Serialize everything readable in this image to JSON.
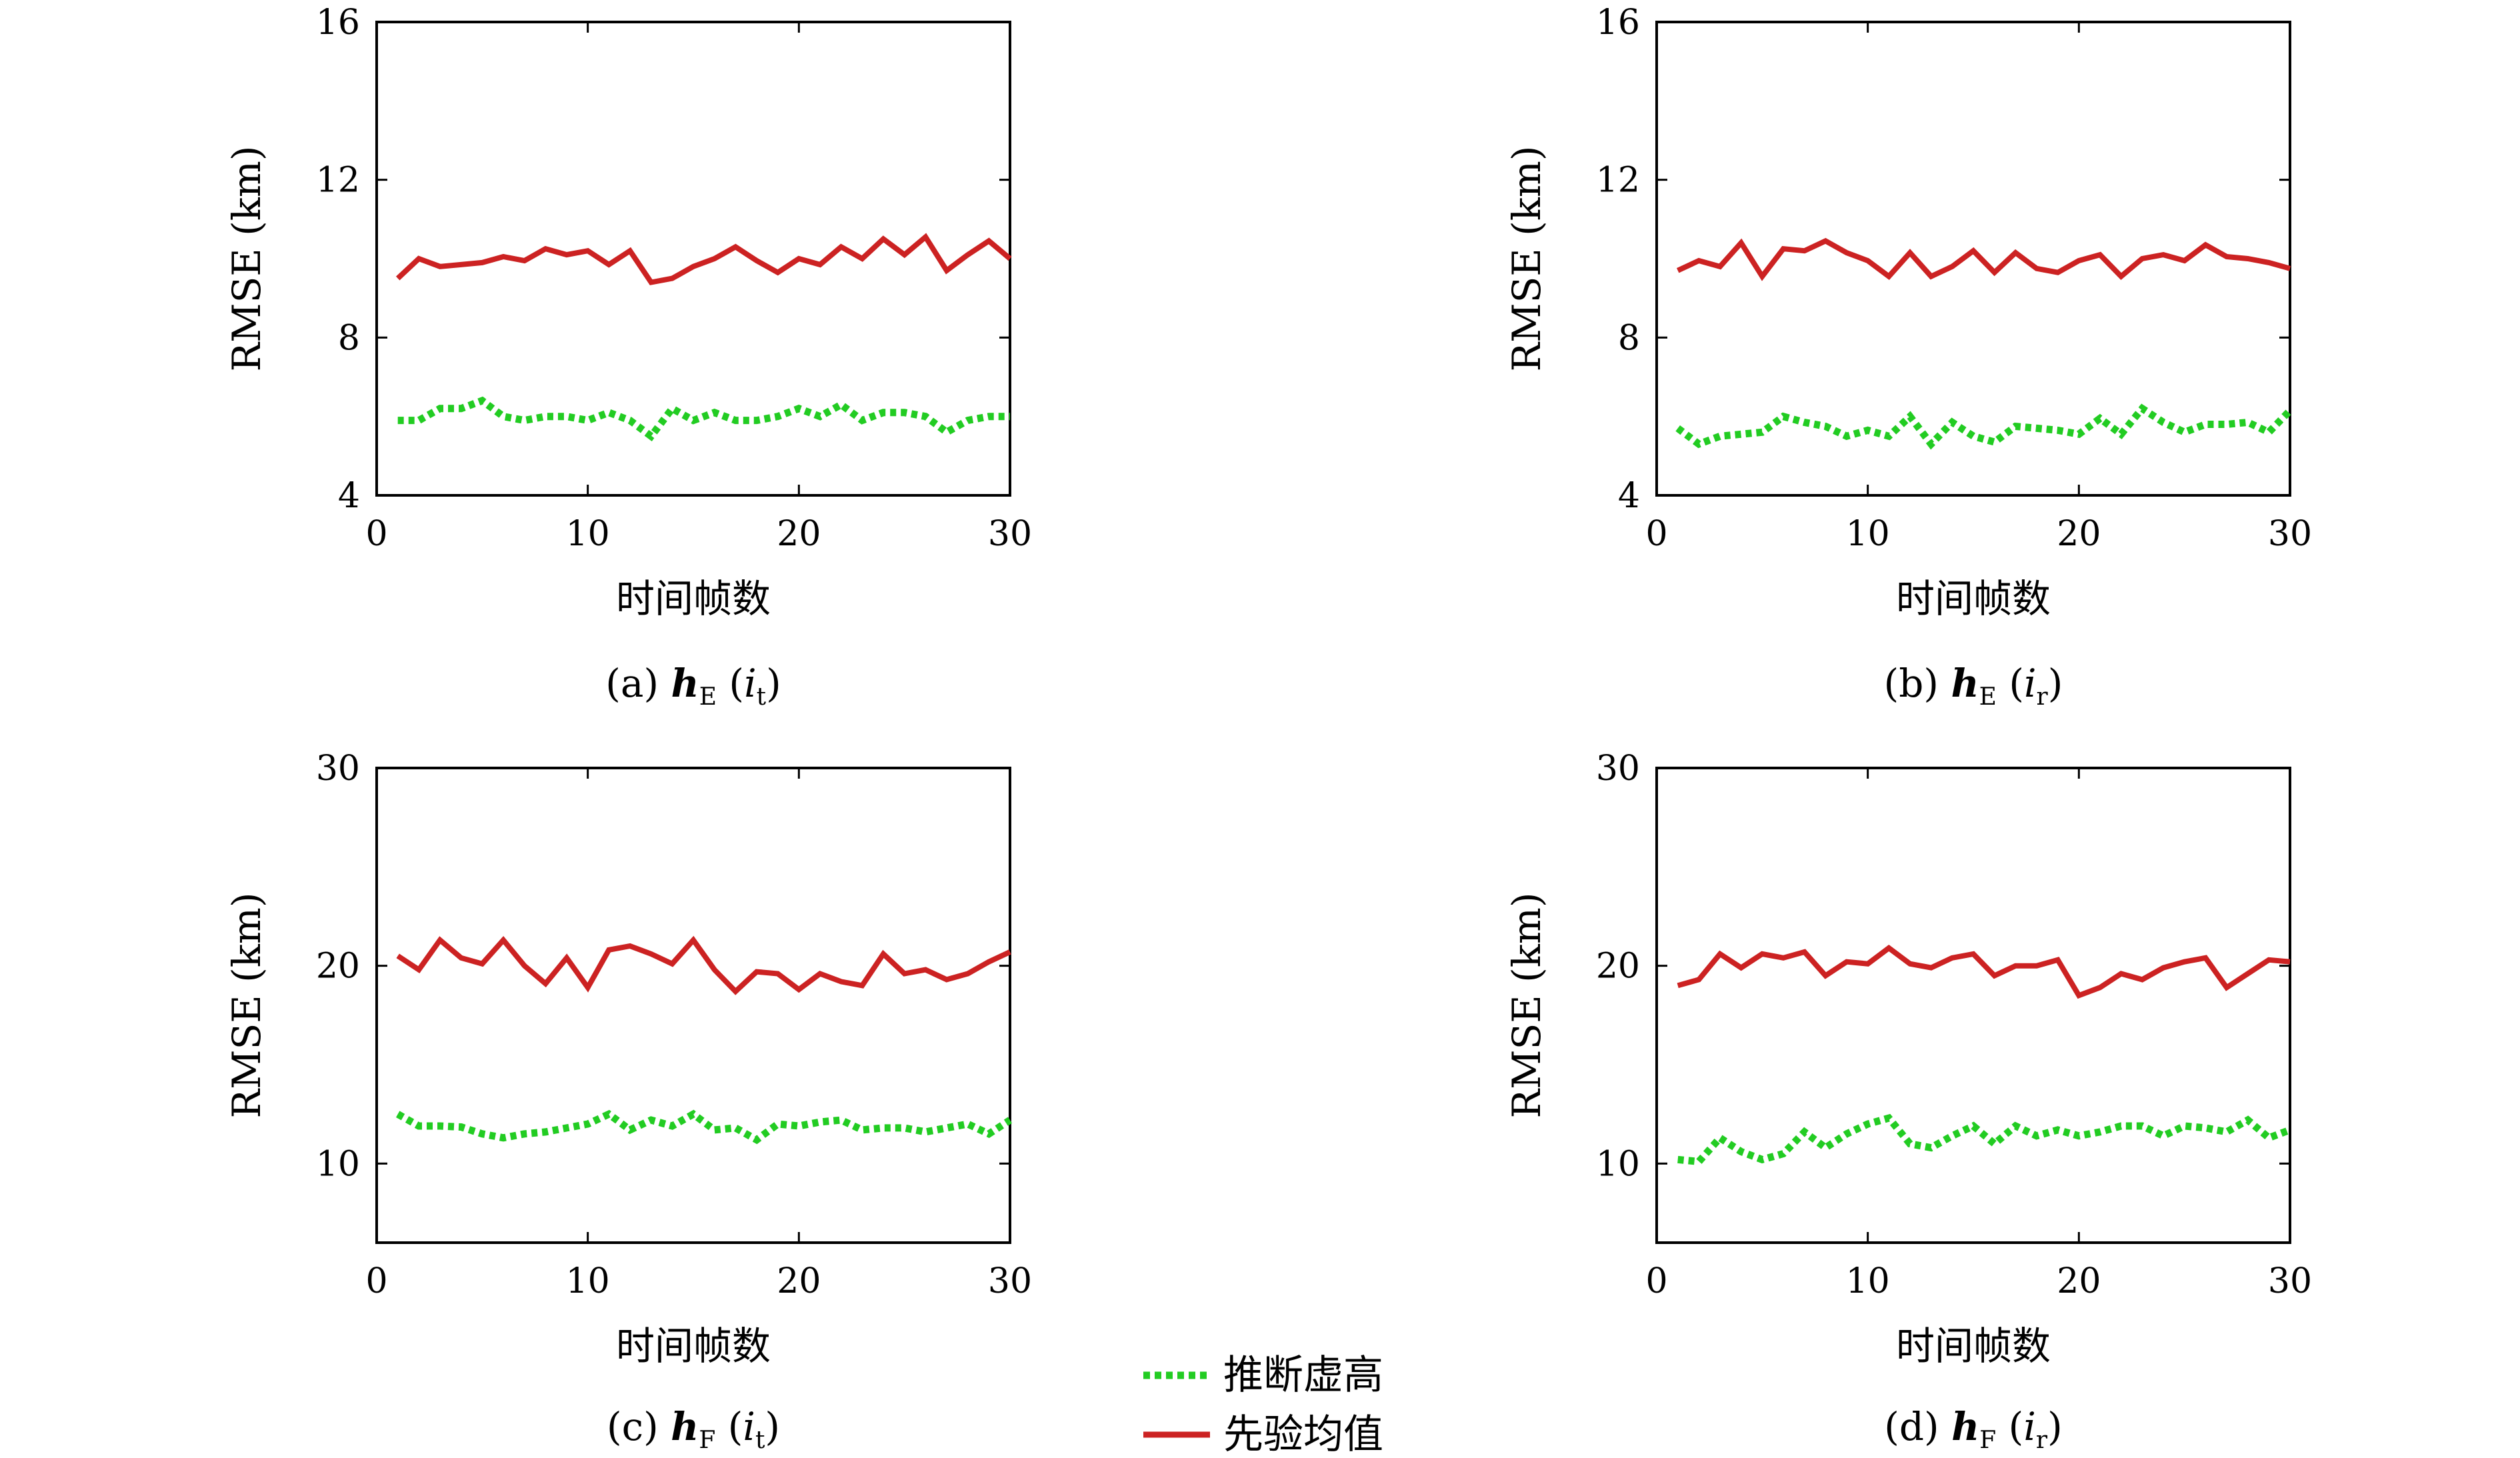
{
  "chart_data": [
    {
      "type": "line",
      "caption": "(a) hE(it)",
      "caption_parts": {
        "prefix": "(a)",
        "h": "h",
        "sub": "E",
        "var": "i",
        "var_sub": "t"
      },
      "xlabel": "时间帧数",
      "ylabel": "RMSE (km)",
      "xlim": [
        0,
        30
      ],
      "ylim": [
        4,
        16
      ],
      "xticks": [
        0,
        10,
        20,
        30
      ],
      "yticks": [
        4,
        8,
        12,
        16
      ],
      "x": [
        1,
        2,
        3,
        4,
        5,
        6,
        7,
        8,
        9,
        10,
        11,
        12,
        13,
        14,
        15,
        16,
        17,
        18,
        19,
        20,
        21,
        22,
        23,
        24,
        25,
        26,
        27,
        28,
        29,
        30
      ],
      "series": [
        {
          "name": "推断虚高",
          "color": "#22cc22",
          "style": "dotted",
          "values": [
            5.9,
            5.9,
            6.2,
            6.2,
            6.4,
            6.0,
            5.9,
            6.0,
            6.0,
            5.9,
            6.1,
            5.9,
            5.5,
            6.2,
            5.9,
            6.1,
            5.9,
            5.9,
            6.0,
            6.2,
            6.0,
            6.3,
            5.9,
            6.1,
            6.1,
            6.0,
            5.6,
            5.9,
            6.0,
            6.0
          ]
        },
        {
          "name": "先验均值",
          "color": "#cc2222",
          "style": "solid",
          "values": [
            9.5,
            10.0,
            9.8,
            9.85,
            9.9,
            10.05,
            9.95,
            10.25,
            10.1,
            10.2,
            9.85,
            10.2,
            9.4,
            9.5,
            9.8,
            10.0,
            10.3,
            9.95,
            9.65,
            10.0,
            9.85,
            10.3,
            10.0,
            10.5,
            10.1,
            10.55,
            9.7,
            10.1,
            10.45,
            10.0
          ]
        }
      ]
    },
    {
      "type": "line",
      "caption": "(b) hE(ir)",
      "caption_parts": {
        "prefix": "(b)",
        "h": "h",
        "sub": "E",
        "var": "i",
        "var_sub": "r"
      },
      "xlabel": "时间帧数",
      "ylabel": "RMSE (km)",
      "xlim": [
        0,
        30
      ],
      "ylim": [
        4,
        16
      ],
      "xticks": [
        0,
        10,
        20,
        30
      ],
      "yticks": [
        4,
        8,
        12,
        16
      ],
      "x": [
        1,
        2,
        3,
        4,
        5,
        6,
        7,
        8,
        9,
        10,
        11,
        12,
        13,
        14,
        15,
        16,
        17,
        18,
        19,
        20,
        21,
        22,
        23,
        24,
        25,
        26,
        27,
        28,
        29,
        30
      ],
      "series": [
        {
          "name": "推断虚高",
          "color": "#22cc22",
          "style": "dotted",
          "values": [
            5.7,
            5.3,
            5.5,
            5.55,
            5.6,
            6.0,
            5.85,
            5.75,
            5.5,
            5.65,
            5.5,
            6.0,
            5.3,
            5.85,
            5.5,
            5.35,
            5.75,
            5.7,
            5.65,
            5.55,
            5.95,
            5.55,
            6.2,
            5.85,
            5.6,
            5.8,
            5.8,
            5.85,
            5.6,
            6.15
          ]
        },
        {
          "name": "先验均值",
          "color": "#cc2222",
          "style": "solid",
          "values": [
            9.7,
            9.95,
            9.8,
            10.4,
            9.55,
            10.25,
            10.2,
            10.45,
            10.15,
            9.95,
            9.55,
            10.15,
            9.55,
            9.8,
            10.2,
            9.65,
            10.15,
            9.75,
            9.65,
            9.95,
            10.1,
            9.55,
            10.0,
            10.1,
            9.95,
            10.35,
            10.05,
            10.0,
            9.9,
            9.75
          ]
        }
      ]
    },
    {
      "type": "line",
      "caption": "(c) hF(it)",
      "caption_parts": {
        "prefix": "(c)",
        "h": "h",
        "sub": "F",
        "var": "i",
        "var_sub": "t"
      },
      "xlabel": "时间帧数",
      "ylabel": "RMSE (km)",
      "xlim": [
        0,
        30
      ],
      "ylim": [
        6,
        30
      ],
      "xticks": [
        0,
        10,
        20,
        30
      ],
      "yticks": [
        10,
        20,
        30
      ],
      "x": [
        1,
        2,
        3,
        4,
        5,
        6,
        7,
        8,
        9,
        10,
        11,
        12,
        13,
        14,
        15,
        16,
        17,
        18,
        19,
        20,
        21,
        22,
        23,
        24,
        25,
        26,
        27,
        28,
        29,
        30
      ],
      "series": [
        {
          "name": "推断虚高",
          "color": "#22cc22",
          "style": "dotted",
          "values": [
            12.5,
            11.9,
            11.9,
            11.85,
            11.5,
            11.3,
            11.5,
            11.6,
            11.8,
            12.0,
            12.5,
            11.7,
            12.2,
            11.9,
            12.5,
            11.7,
            11.8,
            11.2,
            12.0,
            11.9,
            12.1,
            12.2,
            11.7,
            11.8,
            11.8,
            11.6,
            11.8,
            12.0,
            11.5,
            12.2
          ]
        },
        {
          "name": "先验均值",
          "color": "#cc2222",
          "style": "solid",
          "values": [
            20.5,
            19.8,
            21.3,
            20.4,
            20.1,
            21.3,
            20.0,
            19.1,
            20.4,
            18.9,
            20.8,
            21.0,
            20.6,
            20.1,
            21.3,
            19.8,
            18.7,
            19.7,
            19.6,
            18.8,
            19.6,
            19.2,
            19.0,
            20.6,
            19.6,
            19.8,
            19.3,
            19.6,
            20.2,
            20.7
          ]
        }
      ]
    },
    {
      "type": "line",
      "caption": "(d) hF(ir)",
      "caption_parts": {
        "prefix": "(d)",
        "h": "h",
        "sub": "F",
        "var": "i",
        "var_sub": "r"
      },
      "xlabel": "时间帧数",
      "ylabel": "RMSE (km)",
      "xlim": [
        0,
        30
      ],
      "ylim": [
        6,
        30
      ],
      "xticks": [
        0,
        10,
        20,
        30
      ],
      "yticks": [
        10,
        20,
        30
      ],
      "x": [
        1,
        2,
        3,
        4,
        5,
        6,
        7,
        8,
        9,
        10,
        11,
        12,
        13,
        14,
        15,
        16,
        17,
        18,
        19,
        20,
        21,
        22,
        23,
        24,
        25,
        26,
        27,
        28,
        29,
        30
      ],
      "series": [
        {
          "name": "推断虚高",
          "color": "#22cc22",
          "style": "dotted",
          "values": [
            10.2,
            10.1,
            11.3,
            10.6,
            10.2,
            10.5,
            11.6,
            10.8,
            11.5,
            12.0,
            12.3,
            11.0,
            10.8,
            11.4,
            11.9,
            11.0,
            11.9,
            11.4,
            11.7,
            11.4,
            11.6,
            11.9,
            11.9,
            11.4,
            11.9,
            11.8,
            11.6,
            12.2,
            11.3,
            11.7
          ]
        },
        {
          "name": "先验均值",
          "color": "#cc2222",
          "style": "solid",
          "values": [
            19.0,
            19.3,
            20.6,
            19.9,
            20.6,
            20.4,
            20.7,
            19.5,
            20.2,
            20.1,
            20.9,
            20.1,
            19.9,
            20.4,
            20.6,
            19.5,
            20.0,
            20.0,
            20.3,
            18.5,
            18.9,
            19.6,
            19.3,
            19.9,
            20.2,
            20.4,
            18.9,
            19.6,
            20.3,
            20.2
          ]
        }
      ]
    }
  ],
  "legend": {
    "items": [
      {
        "label": "推断虚高",
        "color": "#22cc22",
        "style": "dotted"
      },
      {
        "label": "先验均值",
        "color": "#cc2222",
        "style": "solid"
      }
    ]
  }
}
